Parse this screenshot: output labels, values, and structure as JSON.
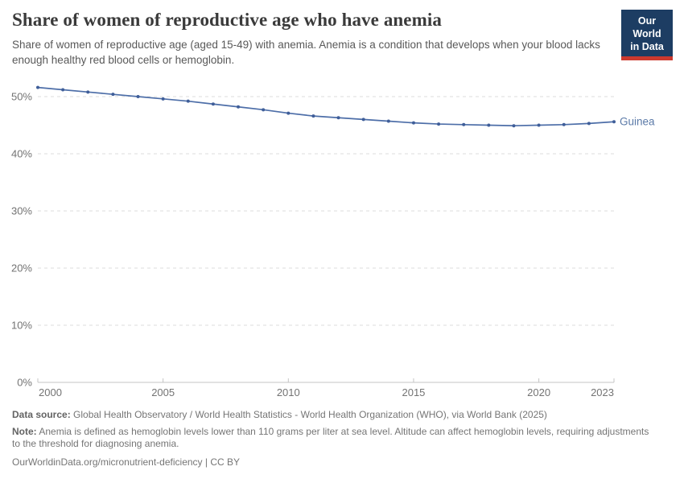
{
  "header": {
    "title": "Share of women of reproductive age who have anemia",
    "subtitle": "Share of women of reproductive age (aged 15-49) with anemia. Anemia is a condition that develops when your blood lacks enough healthy red blood cells or hemoglobin.",
    "logo": {
      "line1": "Our World",
      "line2": "in Data"
    }
  },
  "chart_data": {
    "type": "line",
    "title": "Share of women of reproductive age who have anemia",
    "series": [
      {
        "name": "Guinea",
        "x": [
          2000,
          2001,
          2002,
          2003,
          2004,
          2005,
          2006,
          2007,
          2008,
          2009,
          2010,
          2011,
          2012,
          2013,
          2014,
          2015,
          2016,
          2017,
          2018,
          2019,
          2020,
          2021,
          2022,
          2023
        ],
        "values": [
          51.6,
          51.2,
          50.8,
          50.4,
          50.0,
          49.6,
          49.2,
          48.7,
          48.2,
          47.7,
          47.1,
          46.6,
          46.3,
          46.0,
          45.7,
          45.4,
          45.2,
          45.1,
          45.0,
          44.9,
          45.0,
          45.1,
          45.3,
          45.6
        ]
      }
    ],
    "xlabel": "",
    "ylabel": "",
    "xlim": [
      2000,
      2023
    ],
    "ylim": [
      0,
      52.8
    ],
    "x_ticks": [
      2000,
      2005,
      2010,
      2015,
      2020,
      2023
    ],
    "y_ticks": [
      0,
      10,
      20,
      30,
      40,
      50
    ],
    "y_tick_suffix": "%",
    "grid": "horizontal-dashed",
    "legend_position": "end-of-line-label",
    "line_color": "#4d6ea8",
    "marker_color": "#3f5e99",
    "label_color": "#5b7aa8",
    "gridline_color": "#dedede",
    "axis_color": "#c4c4c4",
    "tick_text_color": "#737373"
  },
  "footer": {
    "source_label": "Data source:",
    "source_text": " Global Health Observatory / World Health Statistics - World Health Organization (WHO), via World Bank (2025)",
    "note_label": "Note:",
    "note_text": " Anemia is defined as hemoglobin levels lower than 110 grams per liter at sea level. Altitude can affect hemoglobin levels, requiring adjustments to the threshold for diagnosing anemia.",
    "link_text": "OurWorldinData.org/micronutrient-deficiency | CC BY"
  }
}
